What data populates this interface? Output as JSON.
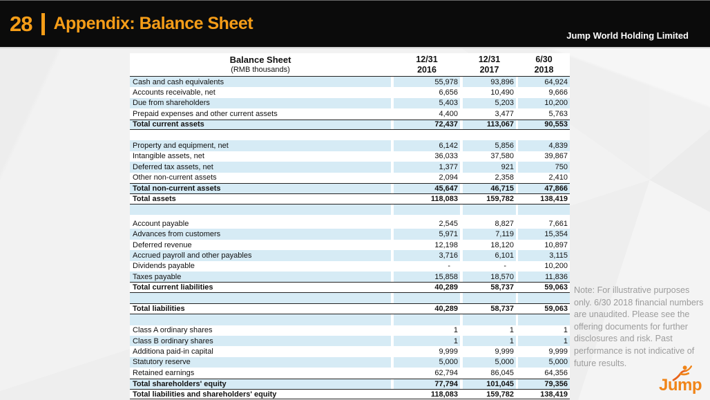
{
  "header": {
    "page_number": "28",
    "title": "Appendix: Balance Sheet",
    "company": "Jump World Holding Limited",
    "accent_color": "#f59d18"
  },
  "table": {
    "title": "Balance Sheet",
    "subtitle": "(RMB thousands)",
    "shade_color": "#d6ebf5",
    "columns": [
      {
        "line1": "12/31",
        "line2": "2016"
      },
      {
        "line1": "12/31",
        "line2": "2017"
      },
      {
        "line1": "6/30",
        "line2": "2018"
      }
    ],
    "rows": [
      {
        "label": "Cash and cash equivalents",
        "values": [
          "55,978",
          "93,896",
          "64,924"
        ],
        "shade": true
      },
      {
        "label": "Accounts receivable, net",
        "values": [
          "6,656",
          "10,490",
          "9,666"
        ]
      },
      {
        "label": "Due from shareholders",
        "values": [
          "5,403",
          "5,203",
          "10,200"
        ],
        "shade": true
      },
      {
        "label": "Prepaid expenses and other current assets",
        "values": [
          "4,400",
          "3,477",
          "5,763"
        ]
      },
      {
        "label": "Total current assets",
        "values": [
          "72,437",
          "113,067",
          "90,553"
        ],
        "shade": true,
        "bold": true,
        "border_top": true,
        "border_bottom": true
      },
      {
        "spacer": true
      },
      {
        "label": "Property and equipment, net",
        "values": [
          "6,142",
          "5,856",
          "4,839"
        ],
        "shade": true
      },
      {
        "label": "Intangible assets, net",
        "values": [
          "36,033",
          "37,580",
          "39,867"
        ]
      },
      {
        "label": "Deferred tax assets, net",
        "values": [
          "1,377",
          "921",
          "750"
        ],
        "shade": true
      },
      {
        "label": "Other non-current assets",
        "values": [
          "2,094",
          "2,358",
          "2,410"
        ]
      },
      {
        "label": "Total non-current assets",
        "values": [
          "45,647",
          "46,715",
          "47,866"
        ],
        "shade": true,
        "bold": true,
        "border_top": true
      },
      {
        "label": "Total assets",
        "values": [
          "118,083",
          "159,782",
          "138,419"
        ],
        "bold": true,
        "border_top": true,
        "border_bottom": true
      },
      {
        "spacer": true,
        "shade": true
      },
      {
        "spacer": true,
        "small": true
      },
      {
        "label": "Account payable",
        "values": [
          "2,545",
          "8,827",
          "7,661"
        ]
      },
      {
        "label": "Advances from customers",
        "values": [
          "5,971",
          "7,119",
          "15,354"
        ],
        "shade": true
      },
      {
        "label": "Deferred revenue",
        "values": [
          "12,198",
          "18,120",
          "10,897"
        ]
      },
      {
        "label": "Accrued payroll and other payables",
        "values": [
          "3,716",
          "6,101",
          "3,115"
        ],
        "shade": true
      },
      {
        "label": "Dividends payable",
        "values": [
          "-",
          "-",
          "10,200"
        ]
      },
      {
        "label": "Taxes payable",
        "values": [
          "15,858",
          "18,570",
          "11,836"
        ],
        "shade": true
      },
      {
        "label": "Total current liabilities",
        "values": [
          "40,289",
          "58,737",
          "59,063"
        ],
        "bold": true,
        "border_top": true,
        "border_bottom": true
      },
      {
        "spacer": true,
        "shade": true
      },
      {
        "label": "Total liabilities",
        "values": [
          "40,289",
          "58,737",
          "59,063"
        ],
        "bold": true,
        "tall": true,
        "border_top": true,
        "border_bottom": true
      },
      {
        "spacer": true,
        "shade": true
      },
      {
        "label": "Class A ordinary shares",
        "values": [
          "1",
          "1",
          "1"
        ]
      },
      {
        "label": "Class B ordinary shares",
        "values": [
          "1",
          "1",
          "1"
        ],
        "shade": true
      },
      {
        "label": "Additiona paid-in capital",
        "values": [
          "9,999",
          "9,999",
          "9,999"
        ]
      },
      {
        "label": "Statutory reserve",
        "values": [
          "5,000",
          "5,000",
          "5,000"
        ],
        "shade": true
      },
      {
        "label": "Retained earnings",
        "values": [
          "62,794",
          "86,045",
          "64,356"
        ]
      },
      {
        "label": "Total shareholders' equity",
        "values": [
          "77,794",
          "101,045",
          "79,356"
        ],
        "shade": true,
        "bold": true,
        "border_top": true
      },
      {
        "label": "Total liabilities and shareholders' equity",
        "values": [
          "118,083",
          "159,782",
          "138,419"
        ],
        "bold": true,
        "border_top": true,
        "border_bottom": true
      }
    ]
  },
  "note": {
    "text": "Note: For illustrative purposes only. 6/30 2018 financial numbers are unaudited. Please see the offering documents for further disclosures and risk. Past performance is not indicative of future results."
  },
  "logo": {
    "text": "Jump",
    "color": "#f08519"
  }
}
